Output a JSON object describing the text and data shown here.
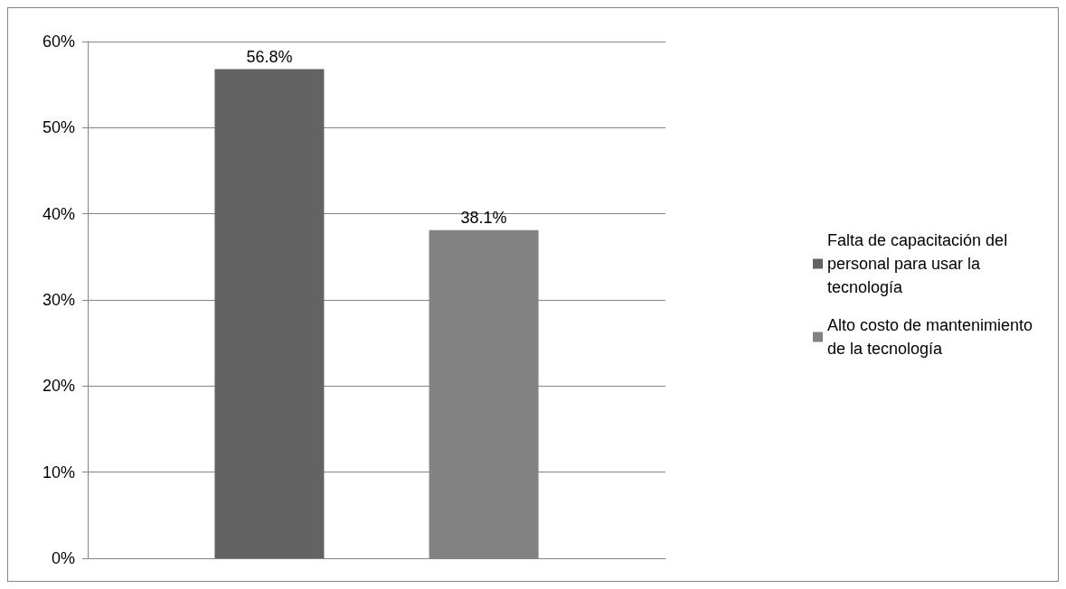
{
  "chart_data": {
    "type": "bar",
    "categories": [
      null
    ],
    "series": [
      {
        "name": "Falta de capacitación del personal para usar la tecnología",
        "color": "#636363",
        "values": [
          56.8
        ],
        "value_labels": [
          "56.8%"
        ]
      },
      {
        "name": "Alto costo de mantenimiento de la tecnología",
        "color": "#828282",
        "values": [
          38.1
        ],
        "value_labels": [
          "38.1%"
        ]
      }
    ],
    "ylim": [
      0,
      60
    ],
    "yticks": [
      {
        "value": 0,
        "label": "0%"
      },
      {
        "value": 10,
        "label": "10%"
      },
      {
        "value": 20,
        "label": "20%"
      },
      {
        "value": 30,
        "label": "30%"
      },
      {
        "value": 40,
        "label": "40%"
      },
      {
        "value": 50,
        "label": "50%"
      },
      {
        "value": 60,
        "label": "60%"
      }
    ],
    "grid": "y",
    "legend": "right"
  }
}
